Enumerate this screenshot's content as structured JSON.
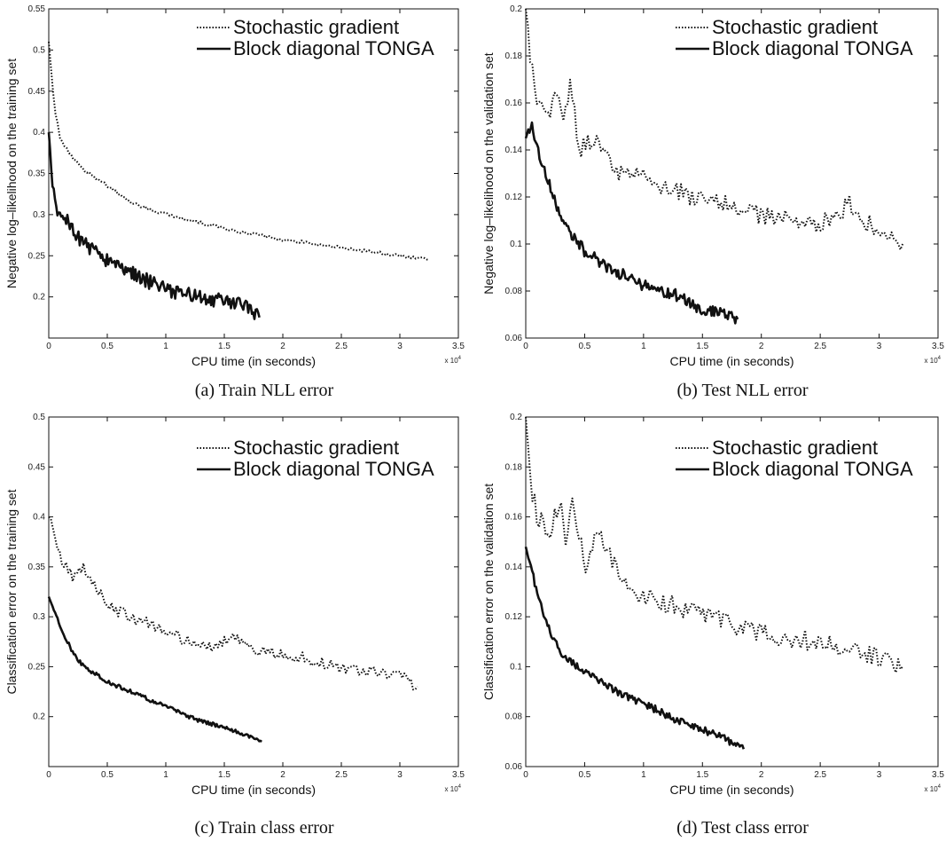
{
  "chart_data": [
    {
      "type": "line",
      "caption": "(a)  Train NLL error",
      "xlabel": "CPU time (in seconds)",
      "ylabel": "Negative log–likelihood on the training set",
      "x_multiplier": "x 10",
      "x_multiplier_exp": "4",
      "xlim": [
        0,
        3.5
      ],
      "ylim": [
        0.15,
        0.55
      ],
      "xticks": [
        0,
        0.5,
        1,
        1.5,
        2,
        2.5,
        3,
        3.5
      ],
      "xtick_labels": [
        "0",
        "0.5",
        "1",
        "1.5",
        "2",
        "2.5",
        "3",
        "3.5"
      ],
      "yticks": [
        0.2,
        0.25,
        0.3,
        0.35,
        0.4,
        0.45,
        0.5,
        0.55
      ],
      "ytick_labels": [
        "0.2",
        "0.25",
        "0.3",
        "0.35",
        "0.4",
        "0.45",
        "0.5",
        "0.55"
      ],
      "series": [
        {
          "name": "Stochastic gradient",
          "style": "dotted",
          "noise": 0.002,
          "points": [
            [
              0,
              0.51
            ],
            [
              0.05,
              0.43
            ],
            [
              0.1,
              0.39
            ],
            [
              0.2,
              0.37
            ],
            [
              0.3,
              0.355
            ],
            [
              0.5,
              0.335
            ],
            [
              0.7,
              0.315
            ],
            [
              1.0,
              0.3
            ],
            [
              1.3,
              0.29
            ],
            [
              1.6,
              0.28
            ],
            [
              2.0,
              0.27
            ],
            [
              2.5,
              0.26
            ],
            [
              3.0,
              0.25
            ],
            [
              3.25,
              0.245
            ]
          ]
        },
        {
          "name": "Block diagonal TONGA",
          "style": "solid",
          "noise": 0.009,
          "points": [
            [
              0,
              0.4
            ],
            [
              0.03,
              0.33
            ],
            [
              0.08,
              0.3
            ],
            [
              0.15,
              0.295
            ],
            [
              0.2,
              0.28
            ],
            [
              0.3,
              0.265
            ],
            [
              0.5,
              0.245
            ],
            [
              0.7,
              0.23
            ],
            [
              0.9,
              0.215
            ],
            [
              1.1,
              0.205
            ],
            [
              1.3,
              0.2
            ],
            [
              1.5,
              0.195
            ],
            [
              1.7,
              0.19
            ],
            [
              1.8,
              0.175
            ]
          ]
        }
      ]
    },
    {
      "type": "line",
      "caption": "(b)  Test NLL error",
      "xlabel": "CPU time (in seconds)",
      "ylabel": "Negative log–likelihood on the validation set",
      "x_multiplier": "x 10",
      "x_multiplier_exp": "4",
      "xlim": [
        0,
        3.5
      ],
      "ylim": [
        0.06,
        0.2
      ],
      "xticks": [
        0,
        0.5,
        1,
        1.5,
        2,
        2.5,
        3,
        3.5
      ],
      "xtick_labels": [
        "0",
        "0.5",
        "1",
        "1.5",
        "2",
        "2.5",
        "3",
        "3.5"
      ],
      "yticks": [
        0.06,
        0.08,
        0.1,
        0.12,
        0.14,
        0.16,
        0.18,
        0.2
      ],
      "ytick_labels": [
        "0.06",
        "0.08",
        "0.1",
        "0.12",
        "0.14",
        "0.16",
        "0.18",
        "0.2"
      ],
      "series": [
        {
          "name": "Stochastic gradient",
          "style": "dotted",
          "noise": 0.004,
          "points": [
            [
              0,
              0.2
            ],
            [
              0.05,
              0.175
            ],
            [
              0.1,
              0.16
            ],
            [
              0.2,
              0.155
            ],
            [
              0.28,
              0.165
            ],
            [
              0.32,
              0.15
            ],
            [
              0.38,
              0.17
            ],
            [
              0.45,
              0.14
            ],
            [
              0.6,
              0.145
            ],
            [
              0.8,
              0.13
            ],
            [
              1.0,
              0.128
            ],
            [
              1.3,
              0.122
            ],
            [
              1.6,
              0.118
            ],
            [
              2.0,
              0.112
            ],
            [
              2.5,
              0.108
            ],
            [
              2.75,
              0.117
            ],
            [
              3.0,
              0.104
            ],
            [
              3.2,
              0.1
            ]
          ]
        },
        {
          "name": "Block diagonal TONGA",
          "style": "solid",
          "noise": 0.0025,
          "points": [
            [
              0,
              0.145
            ],
            [
              0.05,
              0.15
            ],
            [
              0.1,
              0.14
            ],
            [
              0.2,
              0.125
            ],
            [
              0.3,
              0.11
            ],
            [
              0.5,
              0.097
            ],
            [
              0.7,
              0.09
            ],
            [
              0.9,
              0.085
            ],
            [
              1.1,
              0.08
            ],
            [
              1.3,
              0.078
            ],
            [
              1.5,
              0.072
            ],
            [
              1.7,
              0.071
            ],
            [
              1.8,
              0.068
            ]
          ]
        }
      ]
    },
    {
      "type": "line",
      "caption": "(c)  Train class error",
      "xlabel": "CPU time (in seconds)",
      "ylabel": "Classification error on the training set",
      "x_multiplier": "x 10",
      "x_multiplier_exp": "4",
      "xlim": [
        0,
        3.5
      ],
      "ylim": [
        0.15,
        0.5
      ],
      "xticks": [
        0,
        0.5,
        1,
        1.5,
        2,
        2.5,
        3,
        3.5
      ],
      "xtick_labels": [
        "0",
        "0.5",
        "1",
        "1.5",
        "2",
        "2.5",
        "3",
        "3.5"
      ],
      "yticks": [
        0.2,
        0.25,
        0.3,
        0.35,
        0.4,
        0.45,
        0.5
      ],
      "ytick_labels": [
        "0.2",
        "0.25",
        "0.3",
        "0.35",
        "0.4",
        "0.45",
        "0.5"
      ],
      "series": [
        {
          "name": "Stochastic gradient",
          "style": "dotted",
          "noise": 0.006,
          "points": [
            [
              0,
              0.4
            ],
            [
              0.1,
              0.36
            ],
            [
              0.2,
              0.34
            ],
            [
              0.3,
              0.35
            ],
            [
              0.4,
              0.33
            ],
            [
              0.5,
              0.31
            ],
            [
              0.7,
              0.3
            ],
            [
              0.9,
              0.29
            ],
            [
              1.1,
              0.28
            ],
            [
              1.4,
              0.27
            ],
            [
              1.6,
              0.28
            ],
            [
              1.8,
              0.265
            ],
            [
              2.1,
              0.26
            ],
            [
              2.5,
              0.25
            ],
            [
              3.0,
              0.24
            ],
            [
              3.15,
              0.23
            ]
          ]
        },
        {
          "name": "Block diagonal TONGA",
          "style": "solid",
          "noise": 0.002,
          "points": [
            [
              0,
              0.32
            ],
            [
              0.1,
              0.29
            ],
            [
              0.2,
              0.265
            ],
            [
              0.3,
              0.25
            ],
            [
              0.5,
              0.235
            ],
            [
              0.7,
              0.225
            ],
            [
              0.9,
              0.215
            ],
            [
              1.1,
              0.205
            ],
            [
              1.3,
              0.195
            ],
            [
              1.5,
              0.19
            ],
            [
              1.7,
              0.18
            ],
            [
              1.82,
              0.175
            ]
          ]
        }
      ]
    },
    {
      "type": "line",
      "caption": "(d)  Test class error",
      "xlabel": "CPU time (in seconds)",
      "ylabel": "Classification error on the validation set",
      "x_multiplier": "x 10",
      "x_multiplier_exp": "4",
      "xlim": [
        0,
        3.5
      ],
      "ylim": [
        0.06,
        0.2
      ],
      "xticks": [
        0,
        0.5,
        1,
        1.5,
        2,
        2.5,
        3,
        3.5
      ],
      "xtick_labels": [
        "0",
        "0.5",
        "1",
        "1.5",
        "2",
        "2.5",
        "3",
        "3.5"
      ],
      "yticks": [
        0.06,
        0.08,
        0.1,
        0.12,
        0.14,
        0.16,
        0.18,
        0.2
      ],
      "ytick_labels": [
        "0.06",
        "0.08",
        "0.1",
        "0.12",
        "0.14",
        "0.16",
        "0.18",
        "0.2"
      ],
      "series": [
        {
          "name": "Stochastic gradient",
          "style": "dotted",
          "noise": 0.004,
          "points": [
            [
              0,
              0.2
            ],
            [
              0.05,
              0.17
            ],
            [
              0.1,
              0.16
            ],
            [
              0.2,
              0.155
            ],
            [
              0.3,
              0.165
            ],
            [
              0.35,
              0.148
            ],
            [
              0.4,
              0.168
            ],
            [
              0.5,
              0.14
            ],
            [
              0.6,
              0.155
            ],
            [
              0.8,
              0.135
            ],
            [
              1.0,
              0.128
            ],
            [
              1.3,
              0.124
            ],
            [
              1.6,
              0.12
            ],
            [
              2.0,
              0.113
            ],
            [
              2.5,
              0.11
            ],
            [
              3.0,
              0.104
            ],
            [
              3.2,
              0.1
            ]
          ]
        },
        {
          "name": "Block diagonal TONGA",
          "style": "solid",
          "noise": 0.0015,
          "points": [
            [
              0,
              0.148
            ],
            [
              0.05,
              0.14
            ],
            [
              0.1,
              0.128
            ],
            [
              0.2,
              0.115
            ],
            [
              0.3,
              0.105
            ],
            [
              0.5,
              0.098
            ],
            [
              0.7,
              0.092
            ],
            [
              0.9,
              0.087
            ],
            [
              1.1,
              0.083
            ],
            [
              1.3,
              0.078
            ],
            [
              1.5,
              0.075
            ],
            [
              1.7,
              0.071
            ],
            [
              1.85,
              0.067
            ]
          ]
        }
      ]
    }
  ]
}
